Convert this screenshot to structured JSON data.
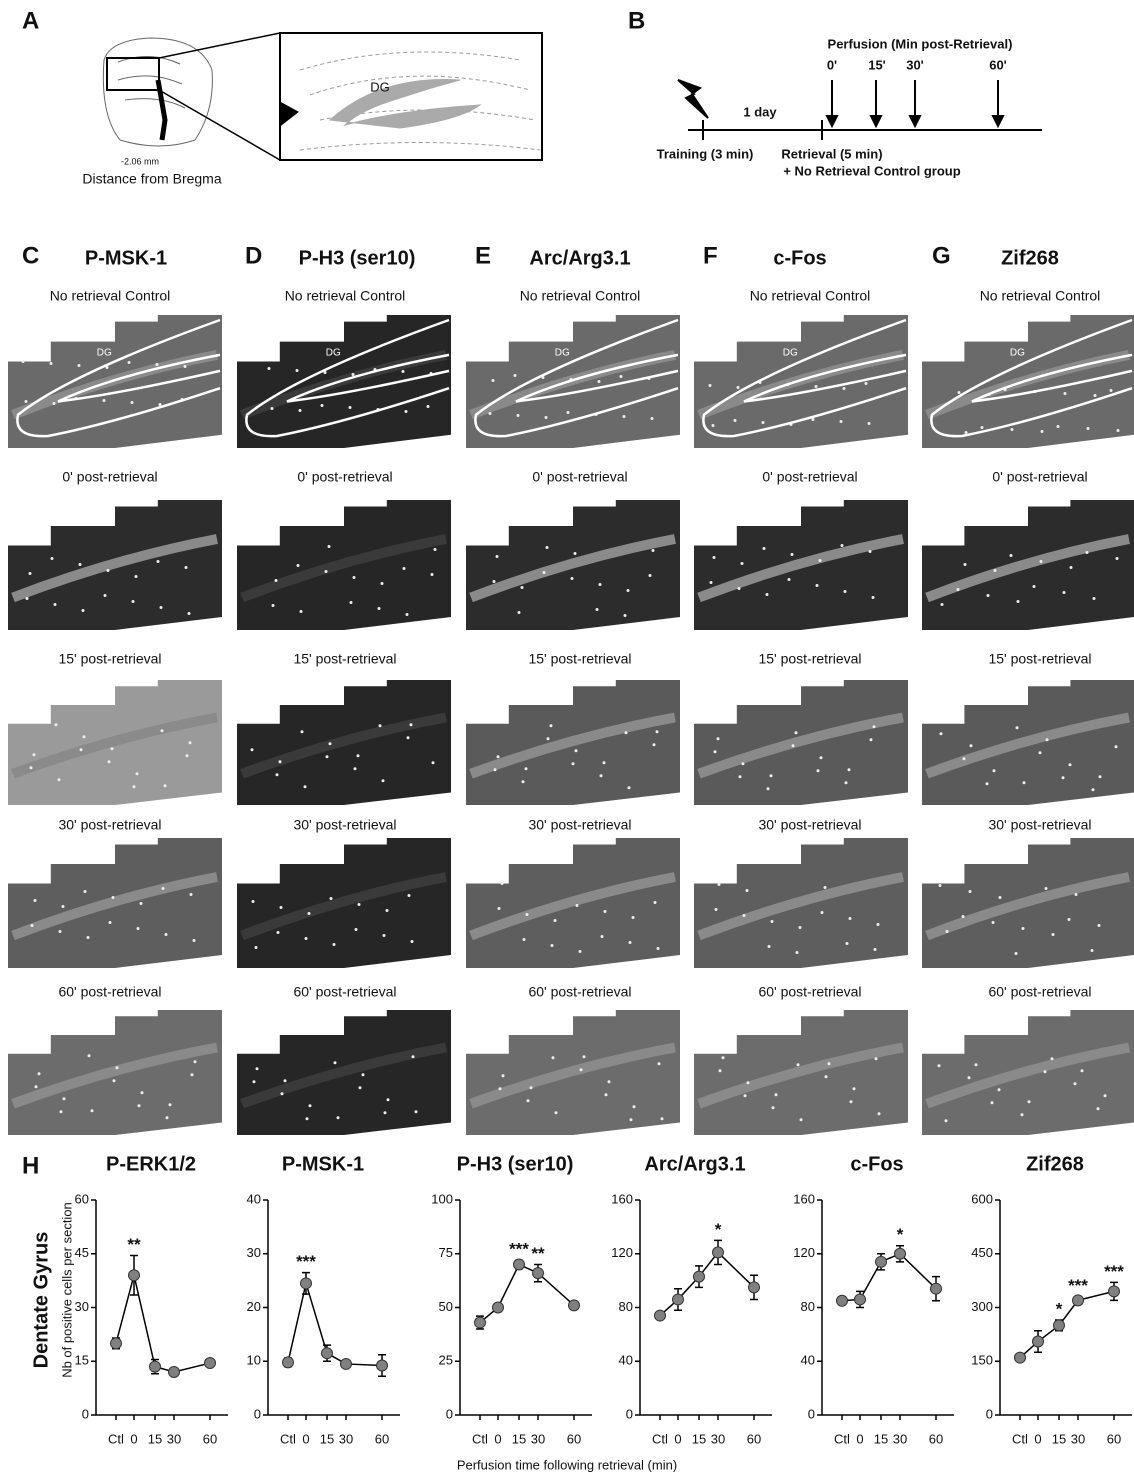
{
  "panels": {
    "a": {
      "label": "A",
      "region": "DG",
      "coordinate": "-2.06 mm",
      "caption": "Distance from Bregma"
    },
    "b": {
      "label": "B",
      "perfusion_title": "Perfusion (Min post-Retrieval)",
      "times": [
        "0'",
        "15'",
        "30'",
        "60'"
      ],
      "interval": "1 day",
      "training": "Training (3 min)",
      "retrieval": "Retrieval (5 min)",
      "control": "+ No Retrieval Control group"
    },
    "stains": [
      {
        "label": "C",
        "title": "P-MSK-1"
      },
      {
        "label": "D",
        "title": "P-H3 (ser10)"
      },
      {
        "label": "E",
        "title": "Arc/Arg3.1"
      },
      {
        "label": "F",
        "title": "c-Fos"
      },
      {
        "label": "G",
        "title": "Zif268"
      }
    ],
    "rows": [
      "No retrieval Control",
      "0' post-retrieval",
      "15' post-retrieval",
      "30' post-retrieval",
      "60' post-retrieval"
    ],
    "image_region": "DG"
  },
  "h": {
    "label": "H",
    "region": "Dentate Gyrus",
    "ylabel": "Nb of  positive cells per section",
    "xlabel": "Perfusion time following retrieval (min)"
  },
  "chart_data": [
    {
      "type": "line",
      "title": "P-ERK1/2",
      "categories": [
        "Ctl",
        "0",
        "15",
        "30",
        "60"
      ],
      "series": [
        {
          "color": "#808080",
          "values": [
            20,
            39,
            13.5,
            12,
            14.5
          ],
          "errors": [
            1.5,
            5.5,
            2,
            1,
            1
          ]
        }
      ],
      "annotations": [
        null,
        "**",
        null,
        null,
        null
      ],
      "ylim": [
        0,
        60
      ],
      "yticks": [
        0,
        15,
        30,
        45,
        60
      ]
    },
    {
      "type": "line",
      "title": "P-MSK-1",
      "categories": [
        "Ctl",
        "0",
        "15",
        "30",
        "60"
      ],
      "series": [
        {
          "color": "#808080",
          "values": [
            9.8,
            24.5,
            11.5,
            9.5,
            9.2
          ],
          "errors": [
            0.8,
            2,
            1.5,
            0.5,
            2
          ]
        }
      ],
      "annotations": [
        null,
        "***",
        null,
        null,
        null
      ],
      "ylim": [
        0,
        40
      ],
      "yticks": [
        0,
        10,
        20,
        30,
        40
      ]
    },
    {
      "type": "line",
      "title": "P-H3 (ser10)",
      "categories": [
        "Ctl",
        "0",
        "15",
        "30",
        "60"
      ],
      "series": [
        {
          "color": "#808080",
          "values": [
            43,
            50,
            70,
            66,
            51
          ],
          "errors": [
            3,
            1.5,
            2,
            4,
            1
          ]
        }
      ],
      "annotations": [
        null,
        null,
        "***",
        "**",
        null
      ],
      "ylim": [
        0,
        100
      ],
      "yticks": [
        0,
        25,
        50,
        75,
        100
      ]
    },
    {
      "type": "line",
      "title": "Arc/Arg3.1",
      "categories": [
        "Ctl",
        "0",
        "15",
        "30",
        "60"
      ],
      "series": [
        {
          "color": "#808080",
          "values": [
            74,
            86,
            103,
            121,
            95
          ],
          "errors": [
            2,
            8,
            8,
            9,
            9
          ]
        }
      ],
      "annotations": [
        null,
        null,
        null,
        "*",
        null
      ],
      "ylim": [
        0,
        160
      ],
      "yticks": [
        0,
        40,
        80,
        120,
        160
      ]
    },
    {
      "type": "line",
      "title": "c-Fos",
      "categories": [
        "Ctl",
        "0",
        "15",
        "30",
        "60"
      ],
      "series": [
        {
          "color": "#808080",
          "values": [
            85,
            86,
            114,
            120,
            94
          ],
          "errors": [
            3,
            6,
            6,
            6,
            9
          ]
        }
      ],
      "annotations": [
        null,
        null,
        null,
        "*",
        null
      ],
      "ylim": [
        0,
        160
      ],
      "yticks": [
        0,
        40,
        80,
        120,
        160
      ]
    },
    {
      "type": "line",
      "title": "Zif268",
      "categories": [
        "Ctl",
        "0",
        "15",
        "30",
        "60"
      ],
      "series": [
        {
          "color": "#808080",
          "values": [
            160,
            205,
            250,
            320,
            345
          ],
          "errors": [
            10,
            30,
            15,
            10,
            25
          ]
        }
      ],
      "annotations": [
        null,
        null,
        "*",
        "***",
        "***"
      ],
      "ylim": [
        0,
        600
      ],
      "yticks": [
        0,
        150,
        300,
        450,
        600
      ]
    }
  ]
}
